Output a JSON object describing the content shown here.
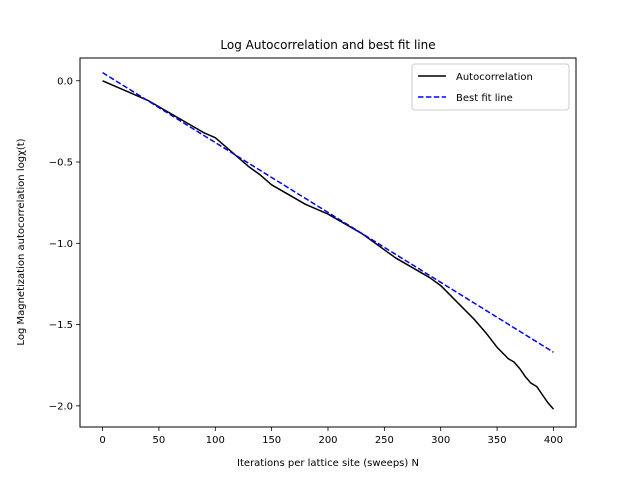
{
  "chart_data": {
    "type": "line",
    "title": "Log Autocorrelation and best fit line",
    "xlabel": "Iterations per lattice site (sweeps) N",
    "ylabel": "Log Magnetization autocorrelation logχ(t)",
    "xlim": [
      -20,
      420
    ],
    "ylim": [
      -2.13,
      0.14
    ],
    "xticks": [
      0,
      50,
      100,
      150,
      200,
      250,
      300,
      350,
      400
    ],
    "yticks": [
      0.0,
      -0.5,
      -1.0,
      -1.5,
      -2.0
    ],
    "xtick_labels": [
      "0",
      "50",
      "100",
      "150",
      "200",
      "250",
      "300",
      "350",
      "400"
    ],
    "ytick_labels": [
      "0.0",
      "−0.5",
      "−1.0",
      "−1.5",
      "−2.0"
    ],
    "grid": false,
    "legend": "top-right",
    "series": [
      {
        "name": "Autocorrelation",
        "color": "#000000",
        "style": "solid",
        "x": [
          0,
          10,
          20,
          30,
          40,
          50,
          60,
          70,
          80,
          90,
          100,
          110,
          120,
          130,
          140,
          150,
          160,
          170,
          180,
          190,
          200,
          210,
          220,
          230,
          240,
          250,
          260,
          270,
          280,
          290,
          300,
          310,
          320,
          330,
          340,
          350,
          360,
          365,
          370,
          375,
          380,
          385,
          390,
          395,
          400
        ],
        "y": [
          0.0,
          -0.03,
          -0.06,
          -0.09,
          -0.12,
          -0.16,
          -0.2,
          -0.24,
          -0.28,
          -0.32,
          -0.35,
          -0.41,
          -0.47,
          -0.53,
          -0.58,
          -0.64,
          -0.68,
          -0.72,
          -0.76,
          -0.79,
          -0.82,
          -0.86,
          -0.9,
          -0.94,
          -0.99,
          -1.04,
          -1.09,
          -1.13,
          -1.17,
          -1.21,
          -1.26,
          -1.33,
          -1.4,
          -1.47,
          -1.55,
          -1.64,
          -1.71,
          -1.73,
          -1.77,
          -1.82,
          -1.86,
          -1.88,
          -1.93,
          -1.98,
          -2.02
        ]
      },
      {
        "name": "Best fit line",
        "color": "#0000ff",
        "style": "dashed",
        "x": [
          0,
          400
        ],
        "y": [
          0.05,
          -1.67
        ]
      }
    ]
  }
}
